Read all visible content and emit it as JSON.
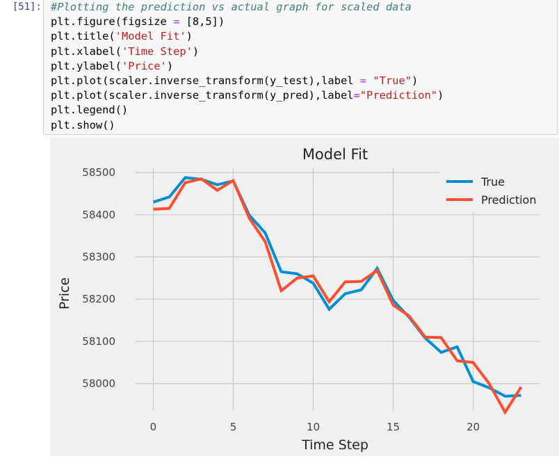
{
  "cell": {
    "prompt": "[51]:",
    "code_lines": [
      {
        "parts": [
          {
            "t": "#Plotting the prediction vs actual graph for scaled data",
            "c": "comment"
          }
        ]
      },
      {
        "parts": [
          {
            "t": "plt.figure(figsize ",
            "c": ""
          },
          {
            "t": "=",
            "c": "op"
          },
          {
            "t": " [8,5])",
            "c": ""
          }
        ]
      },
      {
        "parts": [
          {
            "t": "plt.title(",
            "c": ""
          },
          {
            "t": "'Model Fit'",
            "c": "str"
          },
          {
            "t": ")",
            "c": ""
          }
        ]
      },
      {
        "parts": [
          {
            "t": "plt.xlabel(",
            "c": ""
          },
          {
            "t": "'Time Step'",
            "c": "str"
          },
          {
            "t": ")",
            "c": ""
          }
        ]
      },
      {
        "parts": [
          {
            "t": "plt.ylabel(",
            "c": ""
          },
          {
            "t": "'Price'",
            "c": "str"
          },
          {
            "t": ")",
            "c": ""
          }
        ]
      },
      {
        "parts": [
          {
            "t": "plt.plot(scaler.inverse_transform(y_test),label ",
            "c": ""
          },
          {
            "t": "=",
            "c": "op"
          },
          {
            "t": " ",
            "c": ""
          },
          {
            "t": "\"True\"",
            "c": "str"
          },
          {
            "t": ")",
            "c": ""
          }
        ]
      },
      {
        "parts": [
          {
            "t": "plt.plot(scaler.inverse_transform(y_pred),label",
            "c": ""
          },
          {
            "t": "=",
            "c": "op"
          },
          {
            "t": "\"Prediction\"",
            "c": "str"
          },
          {
            "t": ")",
            "c": ""
          }
        ]
      },
      {
        "parts": [
          {
            "t": "plt.legend()",
            "c": ""
          }
        ]
      },
      {
        "parts": [
          {
            "t": "plt.show()",
            "c": ""
          }
        ]
      }
    ]
  },
  "chart_data": {
    "type": "line",
    "title": "Model Fit",
    "xlabel": "Time Step",
    "ylabel": "Price",
    "xlim": [
      -1.15,
      24.15
    ],
    "ylim": [
      57935,
      58510
    ],
    "x_ticks": [
      0,
      5,
      10,
      15,
      20
    ],
    "y_ticks": [
      58000,
      58100,
      58200,
      58300,
      58400,
      58500
    ],
    "grid": true,
    "legend_position": "top-right",
    "x": [
      0,
      1,
      2,
      3,
      4,
      5,
      6,
      7,
      8,
      9,
      10,
      11,
      12,
      13,
      14,
      15,
      16,
      17,
      18,
      19,
      20,
      21,
      22,
      23
    ],
    "series": [
      {
        "name": "True",
        "color": "#008fd5",
        "values": [
          58430,
          58442,
          58488,
          58484,
          58471,
          58480,
          58399,
          58357,
          58265,
          58260,
          58238,
          58176,
          58213,
          58222,
          58273,
          58197,
          58157,
          58108,
          58074,
          58087,
          58005,
          57990,
          57970,
          57972
        ]
      },
      {
        "name": "Prediction",
        "color": "#fc4f30",
        "values": [
          58413,
          58415,
          58476,
          58485,
          58458,
          58481,
          58392,
          58336,
          58220,
          58250,
          58255,
          58194,
          58241,
          58242,
          58268,
          58186,
          58160,
          58110,
          58109,
          58054,
          58050,
          58000,
          57932,
          57992
        ]
      }
    ],
    "style": {
      "background": "#f0f0f0",
      "grid_color": "#cbcbcb"
    }
  }
}
